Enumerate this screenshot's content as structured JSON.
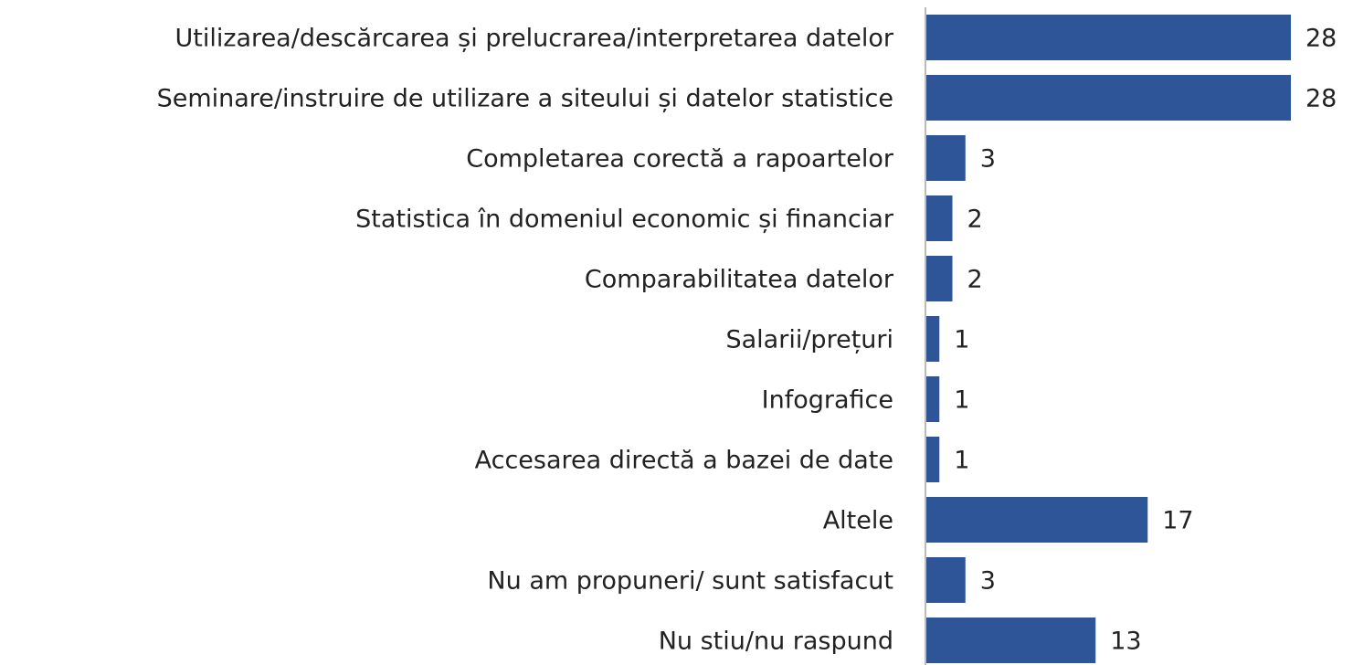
{
  "chart_data": {
    "type": "hbar",
    "categories": [
      "Utilizarea/descărcarea și prelucrarea/interpretarea datelor",
      "Seminare/instruire de utilizare a siteului și datelor statistice",
      "Completarea corectă a rapoartelor",
      "Statistica în domeniul economic și financiar",
      "Comparabilitatea datelor",
      "Salarii/prețuri",
      "Infografice",
      "Accesarea directă a bazei de date",
      "Altele",
      "Nu am propuneri/ sunt satisfacut",
      "Nu stiu/nu raspund"
    ],
    "values": [
      28,
      28,
      3,
      2,
      2,
      1,
      1,
      1,
      17,
      3,
      13
    ],
    "color": "#2e5597"
  }
}
